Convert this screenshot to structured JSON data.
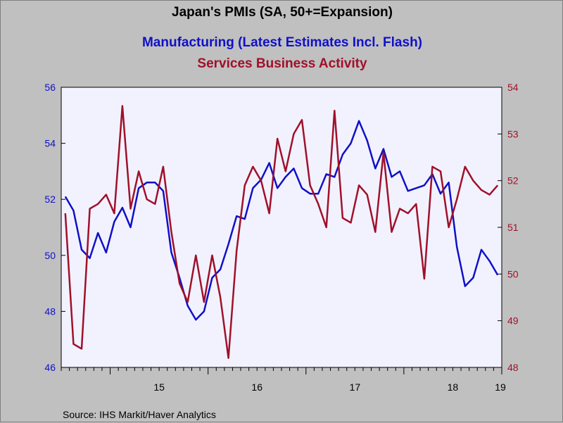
{
  "chart_data": {
    "type": "line",
    "title": "Japan's PMIs (SA, 50+=Expansion)",
    "subtitles": [
      {
        "text": "Manufacturing (Latest Estimates Incl. Flash)",
        "color": "#1010c8"
      },
      {
        "text": "Services Business Activity",
        "color": "#a0102a"
      }
    ],
    "source": "Source:  IHS Markit/Haver Analytics",
    "x_ticks": [
      "15",
      "16",
      "17",
      "18",
      "19"
    ],
    "x_range": [
      2014.5,
      2019.0
    ],
    "y_left": {
      "ticks": [
        46,
        48,
        50,
        52,
        54,
        56
      ],
      "range": [
        46,
        56
      ],
      "color": "#1010c8"
    },
    "y_right": {
      "ticks": [
        48,
        49,
        50,
        51,
        52,
        53,
        54
      ],
      "range": [
        48,
        54
      ],
      "color": "#a0102a"
    },
    "plot_background": "#f2f2ff",
    "series": [
      {
        "axis": "left",
        "color": "#1010c8",
        "start": 2014.5417,
        "step": 0.08333,
        "values": [
          52.1,
          51.6,
          50.2,
          49.9,
          50.8,
          50.1,
          51.2,
          51.7,
          51.0,
          52.4,
          52.6,
          52.6,
          52.3,
          50.1,
          49.2,
          48.2,
          47.7,
          48.0,
          49.2,
          49.5,
          50.4,
          51.4,
          51.3,
          52.4,
          52.7,
          53.3,
          52.4,
          52.8,
          53.1,
          52.4,
          52.2,
          52.2,
          52.9,
          52.8,
          53.6,
          54.0,
          54.8,
          54.1,
          53.1,
          53.8,
          52.8,
          53.0,
          52.3,
          52.4,
          52.5,
          52.9,
          52.2,
          52.6,
          50.3,
          48.9,
          49.2,
          50.2,
          49.8,
          49.3
        ]
      },
      {
        "axis": "right",
        "color": "#a0102a",
        "start": 2014.5417,
        "step": 0.08333,
        "values": [
          51.3,
          48.5,
          48.4,
          51.4,
          51.5,
          51.7,
          51.3,
          53.6,
          51.4,
          52.2,
          51.6,
          51.5,
          52.3,
          50.9,
          49.8,
          49.4,
          50.4,
          49.4,
          50.4,
          49.5,
          48.2,
          50.5,
          51.9,
          52.3,
          52.0,
          51.3,
          52.9,
          52.2,
          53.0,
          53.3,
          51.9,
          51.5,
          51.0,
          53.5,
          51.2,
          51.1,
          51.9,
          51.7,
          50.9,
          52.6,
          50.9,
          51.4,
          51.3,
          51.5,
          49.9,
          52.3,
          52.2,
          51.0,
          51.6,
          52.3,
          52.0,
          51.8,
          51.7,
          51.9
        ]
      }
    ]
  }
}
